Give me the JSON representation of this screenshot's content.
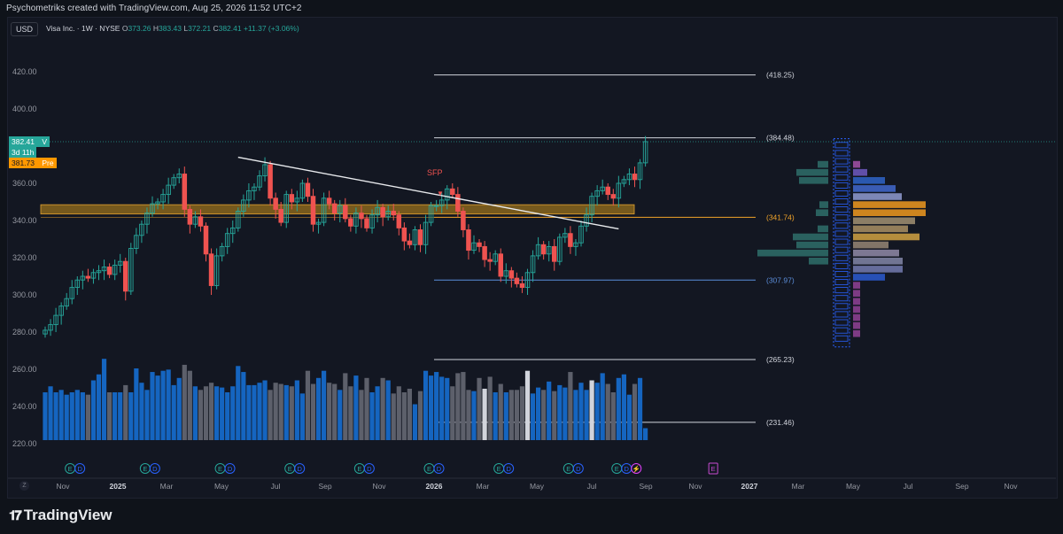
{
  "header": {
    "attribution": "Psychometriks created with TradingView.com, Aug 25, 2026 11:52 UTC+2",
    "currency": "USD",
    "symbol": "Visa Inc. · 1W · NYSE",
    "ohlc": {
      "o_label": "O",
      "o": "373.26",
      "h_label": "H",
      "h": "383.43",
      "l_label": "L",
      "l": "372.21",
      "c_label": "C",
      "c": "382.41",
      "change": "+11.37 (+3.06%)"
    }
  },
  "price_badges": {
    "last": "382.41",
    "last_flag": "V",
    "countdown": "3d 11h",
    "pre": "381.73",
    "pre_label": "Pre"
  },
  "annotation": {
    "sfp": "SFP",
    "sfp_arrow": "▼"
  },
  "colors": {
    "up": "#26a69a",
    "down": "#ef5350",
    "bg": "#131722",
    "zone": "#c8901a",
    "vol_blue": "#1565c0",
    "vol_gray": "#5d606b"
  },
  "footer": {
    "brand": "TradingView"
  },
  "chart_data": {
    "type": "candlestick",
    "timeframe": "1W",
    "y_range": [
      215,
      432
    ],
    "y_ticks": [
      {
        "label": "420.00",
        "value": 420
      },
      {
        "label": "400.00",
        "value": 400
      },
      {
        "label": "380.00",
        "value": 380
      },
      {
        "label": "360.00",
        "value": 360
      },
      {
        "label": "340.00",
        "value": 340
      },
      {
        "label": "320.00",
        "value": 320
      },
      {
        "label": "300.00",
        "value": 300
      },
      {
        "label": "280.00",
        "value": 280
      },
      {
        "label": "260.00",
        "value": 260
      },
      {
        "label": "240.00",
        "value": 240
      },
      {
        "label": "220.00",
        "value": 220
      }
    ],
    "x_labels": [
      "Nov",
      "2025",
      "Mar",
      "May",
      "Jul",
      "Sep",
      "Nov",
      "2026",
      "Mar",
      "May",
      "Jul",
      "Sep",
      "Nov",
      "2027",
      "Mar",
      "May",
      "Jul",
      "Sep",
      "Nov"
    ],
    "x_label_bold": [
      "2025",
      "2026",
      "2027"
    ],
    "levels": [
      {
        "value": 418.25,
        "label": "(418.25)",
        "color": "#d1d4dc"
      },
      {
        "value": 384.48,
        "label": "(384.48)",
        "color": "#d1d4dc"
      },
      {
        "value": 341.74,
        "label": "(341.74)",
        "color": "#f0a32a"
      },
      {
        "value": 307.97,
        "label": "(307.97)",
        "color": "#5b8dd9"
      },
      {
        "value": 265.23,
        "label": "(265.23)",
        "color": "#d1d4dc"
      },
      {
        "value": 231.46,
        "label": "(231.46)",
        "color": "#d1d4dc"
      }
    ],
    "zone": {
      "from": 343.5,
      "to": 348.5
    },
    "trendline": {
      "start_week": 36,
      "start_value": 374,
      "end_week": 107,
      "end_value": 335.5
    },
    "closes": [
      281,
      284,
      289,
      294,
      298,
      304,
      308,
      310,
      309,
      312,
      313,
      315,
      311,
      316,
      318,
      302,
      325,
      332,
      338,
      344,
      349,
      350,
      354,
      359,
      363,
      365,
      346,
      338,
      342,
      337,
      322,
      305,
      321,
      326,
      333,
      336,
      345,
      351,
      356,
      358,
      364,
      370,
      352,
      346,
      339,
      354,
      350,
      352,
      360,
      353,
      338,
      339,
      352,
      349,
      344,
      348,
      341,
      337,
      344,
      341,
      336,
      343,
      347,
      342,
      345,
      343,
      336,
      329,
      327,
      335,
      327,
      339,
      348,
      348,
      351,
      357,
      354,
      345,
      335,
      324,
      328,
      326,
      319,
      318,
      322,
      310,
      313,
      309,
      306,
      304,
      312,
      321,
      327,
      322,
      326,
      318,
      331,
      333,
      326,
      328,
      337,
      343,
      353,
      356,
      358,
      354,
      352,
      360,
      362,
      365,
      362,
      371,
      382.41
    ],
    "volumes": [
      40,
      45,
      40,
      42,
      38,
      40,
      42,
      40,
      38,
      50,
      55,
      68,
      40,
      40,
      40,
      46,
      40,
      60,
      48,
      42,
      57,
      54,
      58,
      59,
      46,
      52,
      63,
      58,
      45,
      42,
      45,
      48,
      45,
      44,
      40,
      45,
      62,
      57,
      46,
      46,
      48,
      50,
      42,
      48,
      47,
      46,
      45,
      50,
      39,
      58,
      47,
      52,
      58,
      48,
      47,
      42,
      56,
      45,
      54,
      42,
      52,
      40,
      45,
      52,
      50,
      39,
      45,
      40,
      43,
      30,
      41,
      58,
      54,
      57,
      53,
      52,
      45,
      56,
      57,
      42,
      41,
      52,
      43,
      53,
      40,
      47,
      40,
      42,
      42,
      45,
      58,
      39,
      44,
      42,
      49,
      41,
      46,
      44,
      57,
      42,
      48,
      42,
      50,
      48,
      56,
      47,
      40,
      52,
      55,
      38,
      47,
      52,
      10
    ],
    "volume_highlight_weeks": [
      82,
      90,
      102
    ],
    "volume_profile": [
      12,
      36,
      33,
      0,
      0,
      10,
      14,
      0,
      12,
      40,
      36,
      80,
      22,
      0,
      0,
      0,
      0,
      0,
      0,
      0,
      0,
      0,
      0,
      0
    ],
    "event_markers": [
      {
        "week": 3,
        "labels": [
          "E",
          "D"
        ]
      },
      {
        "week": 17,
        "labels": [
          "E",
          "D"
        ]
      },
      {
        "week": 31,
        "labels": [
          "E",
          "D"
        ]
      },
      {
        "week": 44,
        "labels": [
          "E",
          "D"
        ]
      },
      {
        "week": 57,
        "labels": [
          "E",
          "D"
        ]
      },
      {
        "week": 70,
        "labels": [
          "E",
          "D"
        ]
      },
      {
        "week": 83,
        "labels": [
          "E",
          "D"
        ]
      },
      {
        "week": 96,
        "labels": [
          "E",
          "D"
        ]
      },
      {
        "week": 105,
        "labels": [
          "E",
          "D",
          "⚡"
        ]
      },
      {
        "week": 123,
        "labels": [
          "E"
        ]
      }
    ]
  }
}
